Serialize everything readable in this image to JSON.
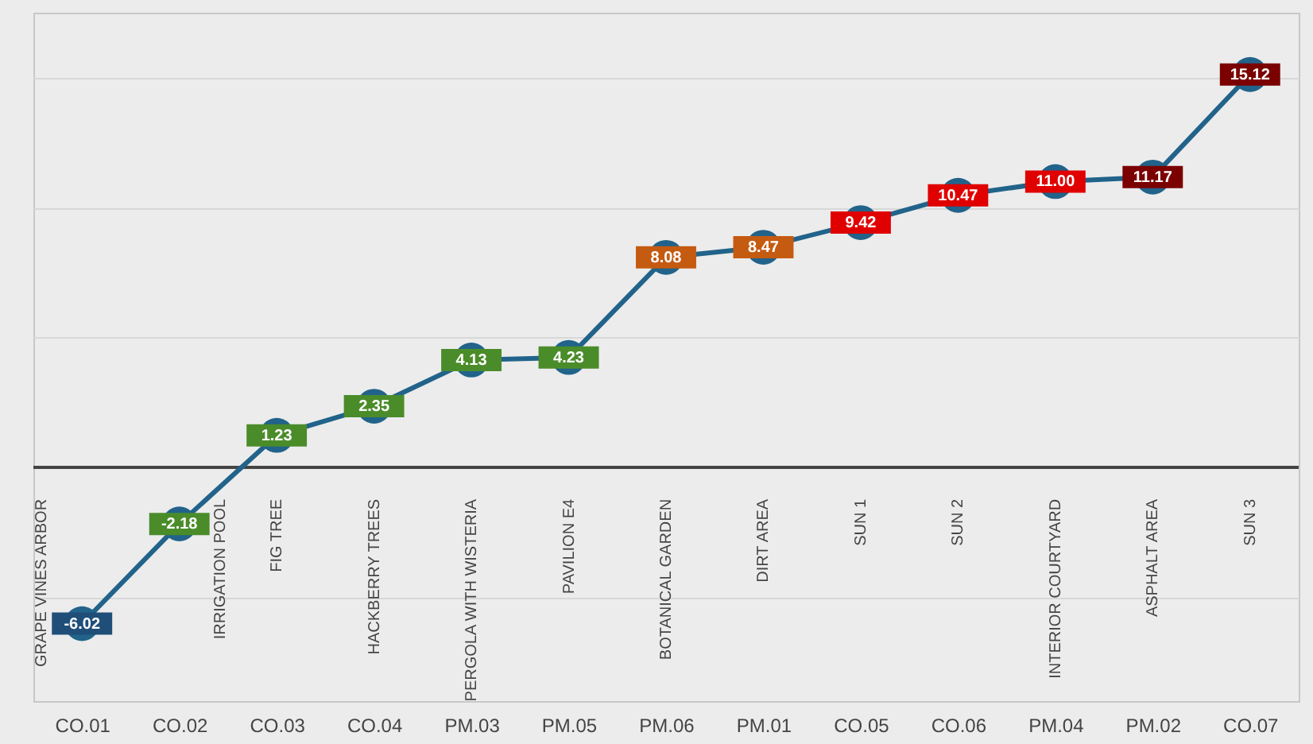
{
  "chart_data": {
    "type": "line",
    "categories": [
      "CO.01",
      "CO.02",
      "CO.03",
      "CO.04",
      "PM.03",
      "PM.05",
      "PM.06",
      "PM.01",
      "CO.05",
      "CO.06",
      "PM.04",
      "PM.02",
      "CO.07"
    ],
    "values": [
      -6.02,
      -2.18,
      1.23,
      2.35,
      4.13,
      4.23,
      8.08,
      8.47,
      9.42,
      10.47,
      11.0,
      11.17,
      15.12
    ],
    "value_labels": [
      "-6.02",
      "-2.18",
      "1.23",
      "2.35",
      "4.13",
      "4.23",
      "8.08",
      "8.47",
      "9.42",
      "10.47",
      "11.00",
      "11.17",
      "15.12"
    ],
    "color": "#21638a",
    "colors": [
      "#1f4e79",
      "#4a8c2a",
      "#4a8c2a",
      "#4a8c2a",
      "#4a8c2a",
      "#4a8c2a",
      "#c55a11",
      "#c55a11",
      "#e00000",
      "#e00000",
      "#e00000",
      "#7b0000",
      "#7b0000"
    ],
    "annotations": [
      "GRAPE VINES ARBOR",
      "IRRIGATION POOL",
      "FIG TREE",
      "HACKBERRY TREES",
      "PERGOLA WITH WISTERIA",
      "PAVILION E4",
      "BOTANICAL GARDEN",
      "DIRT AREA",
      "SUN 1",
      "SUN 2",
      "INTERIOR COURTYARD",
      "ASPHALT AREA",
      "SUN 3"
    ],
    "ylim": [
      -9,
      17.5
    ],
    "yticks": [
      {
        "value": -5,
        "label": null
      },
      {
        "value": 0,
        "label": null
      },
      {
        "value": 5,
        "label": null
      },
      {
        "value": 10,
        "label": null
      },
      {
        "value": 15,
        "label": null
      }
    ],
    "grid": "y",
    "tick_labels": "x",
    "marker": "circle",
    "line_style": "solid"
  }
}
